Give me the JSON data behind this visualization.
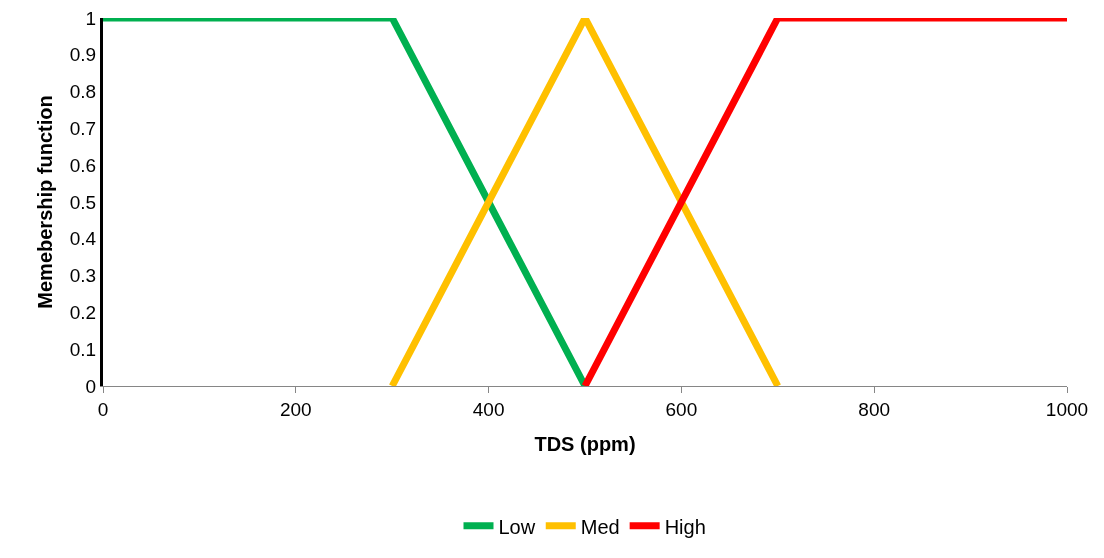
{
  "chart_data": {
    "type": "line",
    "xlabel": "TDS (ppm)",
    "ylabel": "Memebership function",
    "xlim": [
      0,
      1000
    ],
    "xticks": [
      0,
      200,
      400,
      600,
      800,
      1000
    ],
    "ylim": [
      0,
      1
    ],
    "yticks": [
      0,
      0.1,
      0.2,
      0.3,
      0.4,
      0.5,
      0.6,
      0.7,
      0.8,
      0.9,
      1
    ],
    "grid": false,
    "legend": "bottom",
    "marker": "none",
    "line_style": "solid",
    "series": [
      {
        "name": "Low",
        "color": "#00b050",
        "x": [
          0,
          300,
          500
        ],
        "values": [
          1,
          1,
          0
        ]
      },
      {
        "name": "Med",
        "color": "#ffc000",
        "x": [
          300,
          500,
          700
        ],
        "values": [
          0,
          1,
          0
        ]
      },
      {
        "name": "High",
        "color": "#ff0000",
        "x": [
          500,
          700,
          1000
        ],
        "values": [
          0,
          1,
          1
        ]
      }
    ]
  }
}
